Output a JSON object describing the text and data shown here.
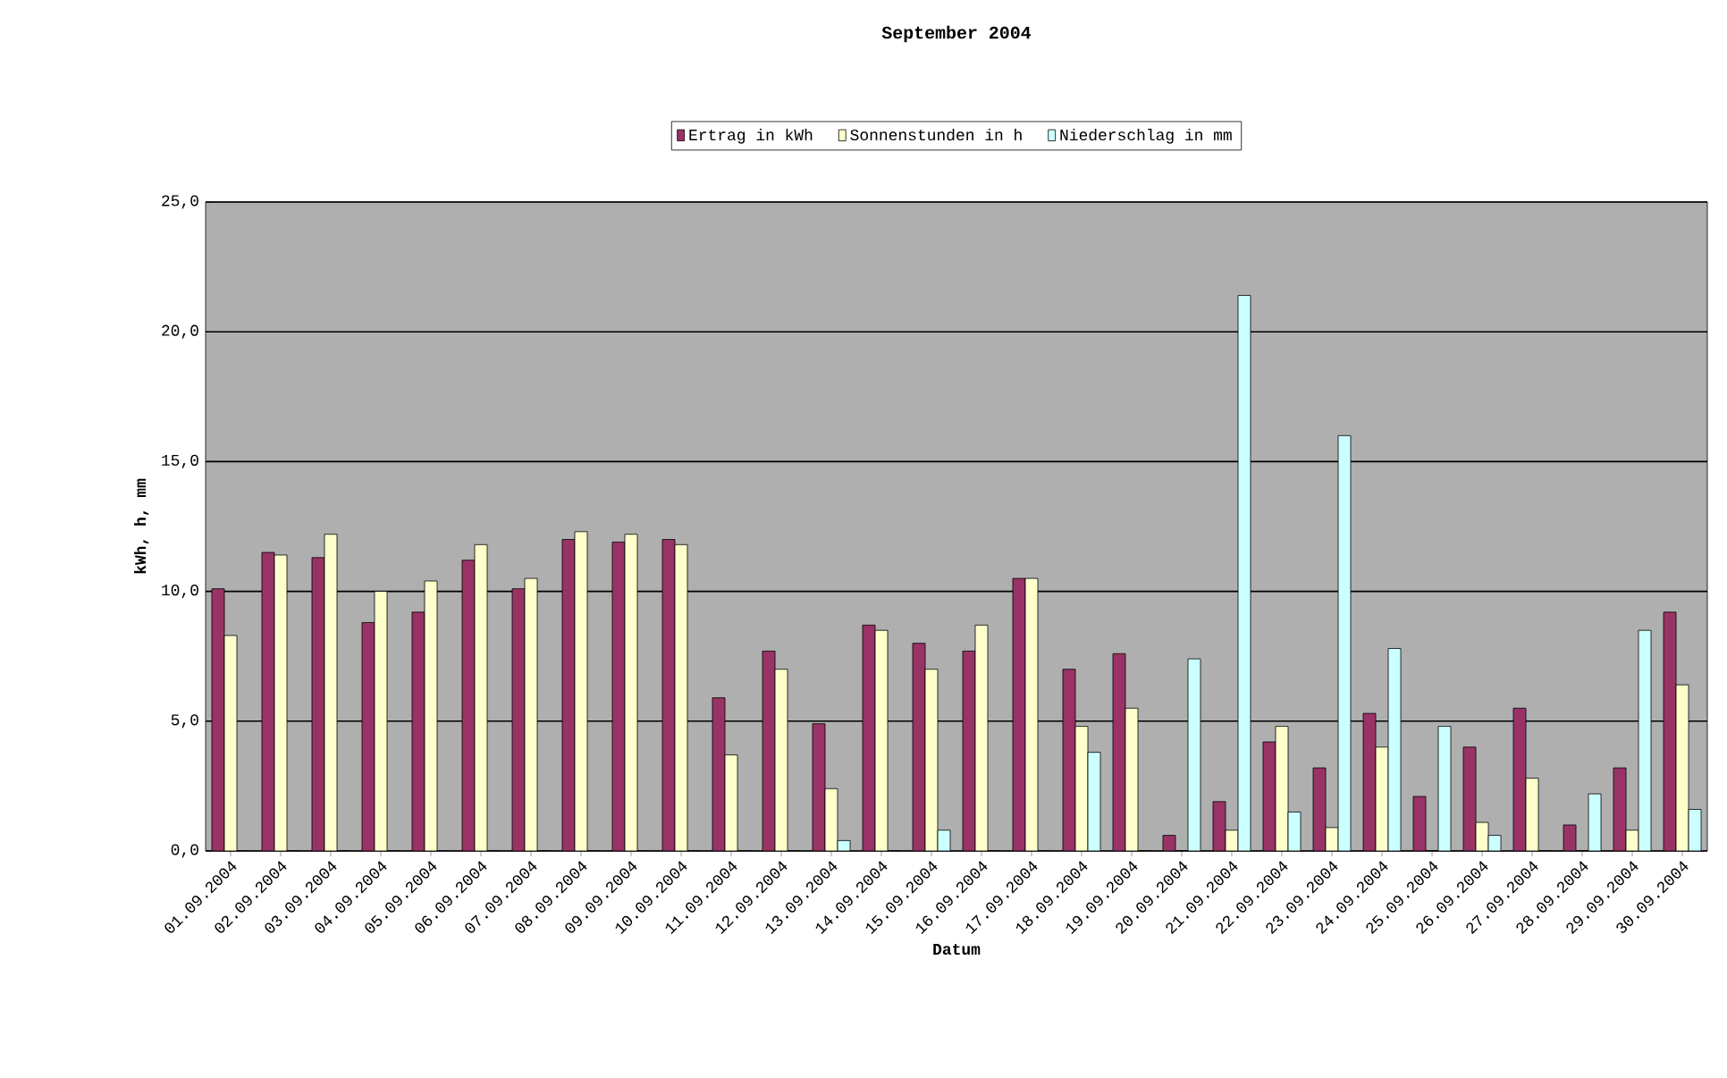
{
  "chart_data": {
    "type": "bar",
    "title": "September 2004",
    "xlabel": "Datum",
    "ylabel": "kWh, h, mm",
    "categories": [
      "01.09.2004",
      "02.09.2004",
      "03.09.2004",
      "04.09.2004",
      "05.09.2004",
      "06.09.2004",
      "07.09.2004",
      "08.09.2004",
      "09.09.2004",
      "10.09.2004",
      "11.09.2004",
      "12.09.2004",
      "13.09.2004",
      "14.09.2004",
      "15.09.2004",
      "16.09.2004",
      "17.09.2004",
      "18.09.2004",
      "19.09.2004",
      "20.09.2004",
      "21.09.2004",
      "22.09.2004",
      "23.09.2004",
      "24.09.2004",
      "25.09.2004",
      "26.09.2004",
      "27.09.2004",
      "28.09.2004",
      "29.09.2004",
      "30.09.2004"
    ],
    "series": [
      {
        "name": "Ertrag in kWh",
        "color": "#993366",
        "values": [
          10.1,
          11.5,
          11.3,
          8.8,
          9.2,
          11.2,
          10.1,
          12.0,
          11.9,
          12.0,
          5.9,
          7.7,
          4.9,
          8.7,
          8.0,
          7.7,
          10.5,
          7.0,
          7.6,
          0.6,
          1.9,
          4.2,
          3.2,
          5.3,
          2.1,
          4.0,
          5.5,
          1.0,
          3.2,
          9.2
        ]
      },
      {
        "name": "Sonnenstunden in h",
        "color": "#ffffcc",
        "values": [
          8.3,
          11.4,
          12.2,
          10.0,
          10.4,
          11.8,
          10.5,
          12.3,
          12.2,
          11.8,
          3.7,
          7.0,
          2.4,
          8.5,
          7.0,
          8.7,
          10.5,
          4.8,
          5.5,
          0.0,
          0.8,
          4.8,
          0.9,
          4.0,
          0,
          1.1,
          2.8,
          0,
          0.8,
          6.4
        ]
      },
      {
        "name": "Niederschlag in mm",
        "color": "#ccffff",
        "values": [
          0,
          0,
          0,
          0,
          0,
          0,
          0,
          0,
          0,
          0,
          0,
          0,
          0.4,
          0,
          0.8,
          0,
          0,
          3.8,
          0,
          7.4,
          21.4,
          1.5,
          16.0,
          7.8,
          4.8,
          0.6,
          0,
          2.2,
          8.5,
          1.6
        ]
      }
    ],
    "ylim": [
      0,
      25
    ],
    "yticks": [
      {
        "value": 0,
        "label": "0,0"
      },
      {
        "value": 5,
        "label": "5,0"
      },
      {
        "value": 10,
        "label": "10,0"
      },
      {
        "value": 15,
        "label": "15,0"
      },
      {
        "value": 20,
        "label": "20,0"
      },
      {
        "value": 25,
        "label": "25,0"
      }
    ],
    "grid": "y",
    "legend": "top"
  }
}
